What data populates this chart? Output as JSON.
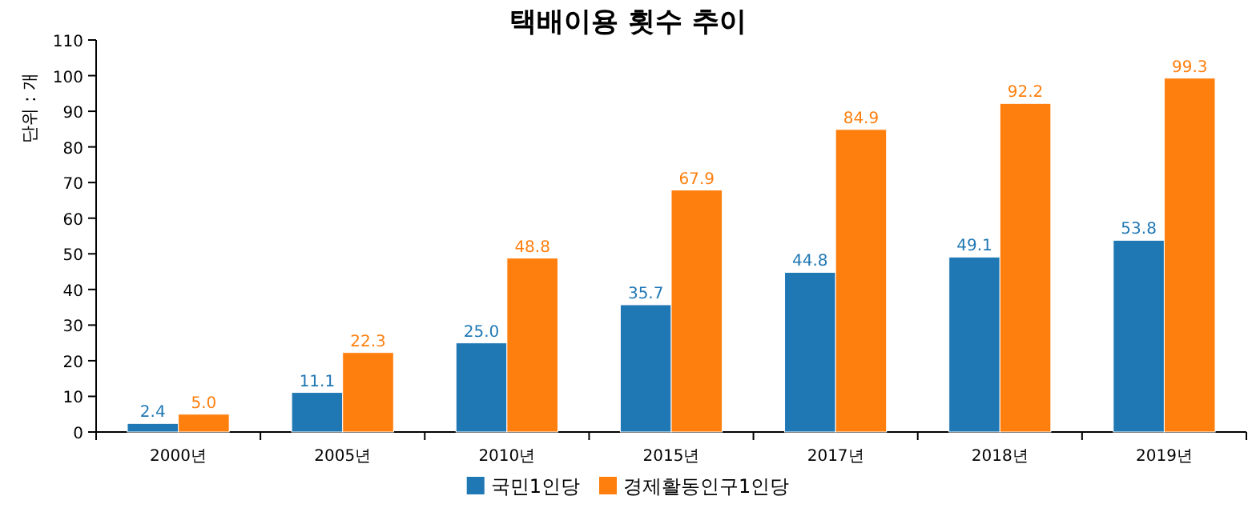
{
  "chart_data": {
    "type": "bar",
    "title": "택배이용 횟수 추이",
    "ylabel": "단위 : 개",
    "categories": [
      "2000년",
      "2005년",
      "2010년",
      "2015년",
      "2017년",
      "2018년",
      "2019년"
    ],
    "series": [
      {
        "name": "국민1인당",
        "color": "#1f77b4",
        "values": [
          2.4,
          11.1,
          25.0,
          35.7,
          44.8,
          49.1,
          53.8
        ],
        "value_labels": [
          "2.4",
          "11.1",
          "25.0",
          "35.7",
          "44.8",
          "49.1",
          "53.8"
        ]
      },
      {
        "name": "경제활동인구1인당",
        "color": "#ff7f0e",
        "values": [
          5.0,
          22.3,
          48.8,
          67.9,
          84.9,
          92.2,
          99.3
        ],
        "value_labels": [
          "5.0",
          "22.3",
          "48.8",
          "67.9",
          "84.9",
          "92.2",
          "99.3"
        ]
      }
    ],
    "ylim": [
      0,
      110
    ],
    "yticks": [
      0,
      10,
      20,
      30,
      40,
      50,
      60,
      70,
      80,
      90,
      100,
      110
    ],
    "grid": false,
    "legend": "bottom"
  }
}
